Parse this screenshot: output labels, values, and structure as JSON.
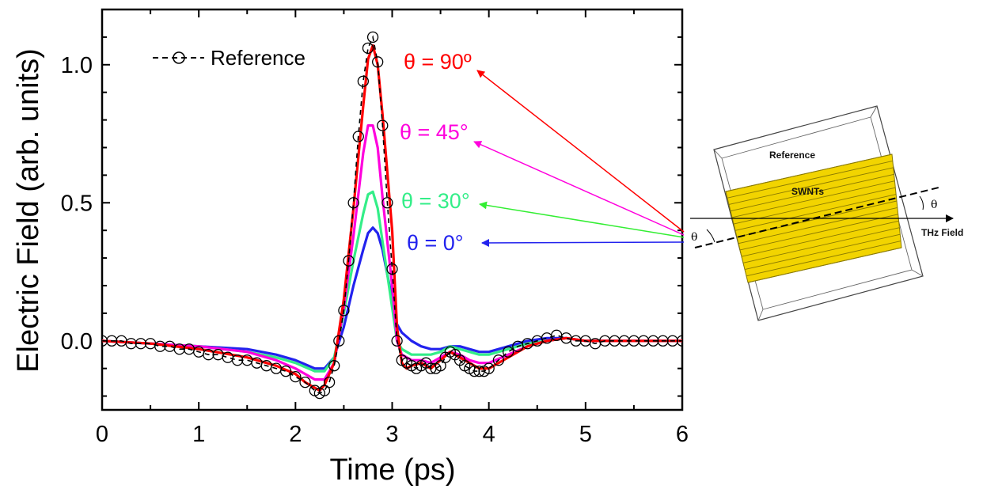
{
  "chart_data": {
    "type": "line",
    "xlabel": "Time (ps)",
    "ylabel": "Electric Field (arb. units)",
    "xlim": [
      0,
      6
    ],
    "ylim": [
      -0.25,
      1.2
    ],
    "xticks": [
      "0",
      "1",
      "2",
      "3",
      "4",
      "5",
      "6"
    ],
    "yticks": [
      "0.0",
      "0.5",
      "1.0"
    ],
    "legend": [
      {
        "label": "Reference",
        "marker": "open-circle",
        "line": "dashed",
        "color": "#000000"
      }
    ],
    "reference": {
      "name": "Reference",
      "color": "#000000",
      "x": [
        0.0,
        0.1,
        0.2,
        0.3,
        0.4,
        0.5,
        0.6,
        0.7,
        0.8,
        0.9,
        1.0,
        1.1,
        1.2,
        1.3,
        1.4,
        1.5,
        1.6,
        1.7,
        1.8,
        1.9,
        2.0,
        2.1,
        2.2,
        2.25,
        2.3,
        2.35,
        2.4,
        2.45,
        2.5,
        2.55,
        2.6,
        2.65,
        2.7,
        2.75,
        2.8,
        2.85,
        2.9,
        2.95,
        3.0,
        3.05,
        3.1,
        3.15,
        3.2,
        3.25,
        3.3,
        3.35,
        3.4,
        3.45,
        3.5,
        3.55,
        3.6,
        3.65,
        3.7,
        3.75,
        3.8,
        3.85,
        3.9,
        3.95,
        4.0,
        4.1,
        4.2,
        4.3,
        4.4,
        4.5,
        4.6,
        4.7,
        4.8,
        4.9,
        5.0,
        5.1,
        5.2,
        5.3,
        5.4,
        5.5,
        5.6,
        5.7,
        5.8,
        5.9,
        6.0
      ],
      "y": [
        0.0,
        0.0,
        0.0,
        -0.01,
        -0.01,
        -0.01,
        -0.02,
        -0.02,
        -0.03,
        -0.03,
        -0.04,
        -0.05,
        -0.05,
        -0.06,
        -0.07,
        -0.07,
        -0.08,
        -0.09,
        -0.1,
        -0.11,
        -0.13,
        -0.15,
        -0.18,
        -0.19,
        -0.18,
        -0.15,
        -0.09,
        0.0,
        0.11,
        0.29,
        0.5,
        0.74,
        0.94,
        1.06,
        1.1,
        1.01,
        0.78,
        0.5,
        0.26,
        0.0,
        -0.07,
        -0.08,
        -0.09,
        -0.1,
        -0.09,
        -0.08,
        -0.1,
        -0.1,
        -0.09,
        -0.06,
        -0.04,
        -0.05,
        -0.07,
        -0.09,
        -0.1,
        -0.11,
        -0.11,
        -0.11,
        -0.1,
        -0.07,
        -0.04,
        -0.02,
        -0.01,
        0.0,
        0.01,
        0.02,
        0.01,
        0.0,
        0.0,
        -0.01,
        0.0,
        0.0,
        0.0,
        0.0,
        0.0,
        0.0,
        0.0,
        0.0,
        0.0
      ]
    },
    "series": [
      {
        "label": "θ = 90º",
        "color": "#ff0000",
        "x": [
          0,
          0.5,
          1.0,
          1.5,
          1.8,
          2.0,
          2.1,
          2.2,
          2.25,
          2.3,
          2.4,
          2.5,
          2.6,
          2.7,
          2.75,
          2.8,
          2.85,
          2.9,
          3.0,
          3.05,
          3.1,
          3.15,
          3.2,
          3.3,
          3.4,
          3.5,
          3.6,
          3.7,
          3.8,
          3.9,
          4.0,
          4.2,
          4.4,
          4.6,
          4.8,
          5.0,
          5.5,
          6.0
        ],
        "y": [
          0.0,
          -0.01,
          -0.03,
          -0.06,
          -0.09,
          -0.12,
          -0.15,
          -0.17,
          -0.18,
          -0.16,
          -0.08,
          0.15,
          0.48,
          0.85,
          1.02,
          1.07,
          1.0,
          0.82,
          0.4,
          0.05,
          -0.08,
          -0.1,
          -0.09,
          -0.08,
          -0.1,
          -0.07,
          -0.04,
          -0.06,
          -0.08,
          -0.1,
          -0.1,
          -0.06,
          -0.02,
          0.0,
          0.01,
          0.0,
          0.0,
          0.0
        ]
      },
      {
        "label": "θ = 45°",
        "color": "#ff00dd",
        "x": [
          0,
          0.5,
          1.0,
          1.5,
          1.8,
          2.0,
          2.2,
          2.3,
          2.4,
          2.5,
          2.6,
          2.7,
          2.75,
          2.8,
          2.85,
          2.9,
          3.0,
          3.05,
          3.1,
          3.2,
          3.3,
          3.4,
          3.5,
          3.6,
          3.7,
          3.8,
          3.9,
          4.0,
          4.2,
          4.4,
          4.6,
          4.8,
          5.0,
          5.5,
          6.0
        ],
        "y": [
          0.0,
          -0.01,
          -0.02,
          -0.04,
          -0.07,
          -0.1,
          -0.14,
          -0.14,
          -0.08,
          0.12,
          0.38,
          0.68,
          0.78,
          0.78,
          0.7,
          0.52,
          0.2,
          0.0,
          -0.05,
          -0.07,
          -0.07,
          -0.08,
          -0.06,
          -0.04,
          -0.05,
          -0.07,
          -0.08,
          -0.08,
          -0.05,
          -0.02,
          0.0,
          0.01,
          0.0,
          0.0,
          0.0
        ]
      },
      {
        "label": "θ = 30°",
        "color": "#33ee88",
        "x": [
          0,
          0.5,
          1.0,
          1.5,
          1.8,
          2.0,
          2.2,
          2.3,
          2.4,
          2.5,
          2.6,
          2.7,
          2.75,
          2.8,
          2.85,
          2.9,
          3.0,
          3.05,
          3.1,
          3.2,
          3.3,
          3.4,
          3.5,
          3.6,
          3.7,
          3.8,
          3.9,
          4.0,
          4.2,
          4.4,
          4.6,
          4.8,
          5.0,
          5.5,
          6.0
        ],
        "y": [
          0.0,
          -0.01,
          -0.02,
          -0.04,
          -0.06,
          -0.08,
          -0.11,
          -0.11,
          -0.06,
          0.1,
          0.29,
          0.46,
          0.53,
          0.54,
          0.48,
          0.36,
          0.12,
          0.0,
          -0.03,
          -0.05,
          -0.05,
          -0.05,
          -0.04,
          -0.02,
          -0.03,
          -0.04,
          -0.05,
          -0.05,
          -0.03,
          -0.01,
          0.0,
          0.01,
          0.0,
          0.0,
          0.0
        ]
      },
      {
        "label": "θ = 0°",
        "color": "#2222ee",
        "x": [
          0,
          0.5,
          1.0,
          1.5,
          1.8,
          2.0,
          2.2,
          2.3,
          2.4,
          2.5,
          2.6,
          2.7,
          2.75,
          2.8,
          2.85,
          2.9,
          3.0,
          3.05,
          3.1,
          3.2,
          3.3,
          3.4,
          3.5,
          3.6,
          3.7,
          3.8,
          3.9,
          4.0,
          4.2,
          4.4,
          4.6,
          4.8,
          5.0,
          5.5,
          6.0
        ],
        "y": [
          0.0,
          -0.01,
          -0.02,
          -0.03,
          -0.05,
          -0.07,
          -0.1,
          -0.1,
          -0.06,
          0.05,
          0.2,
          0.33,
          0.39,
          0.41,
          0.39,
          0.33,
          0.15,
          0.06,
          0.03,
          0.0,
          -0.02,
          -0.03,
          -0.03,
          -0.02,
          -0.02,
          -0.03,
          -0.04,
          -0.04,
          -0.02,
          0.0,
          0.01,
          0.01,
          0.0,
          0.0,
          0.0
        ]
      }
    ]
  },
  "inset": {
    "reference_label": "Reference",
    "swnts_label": "SWNTs",
    "thz_label": "THz Field",
    "theta_left": "θ",
    "theta_right": "θ"
  }
}
